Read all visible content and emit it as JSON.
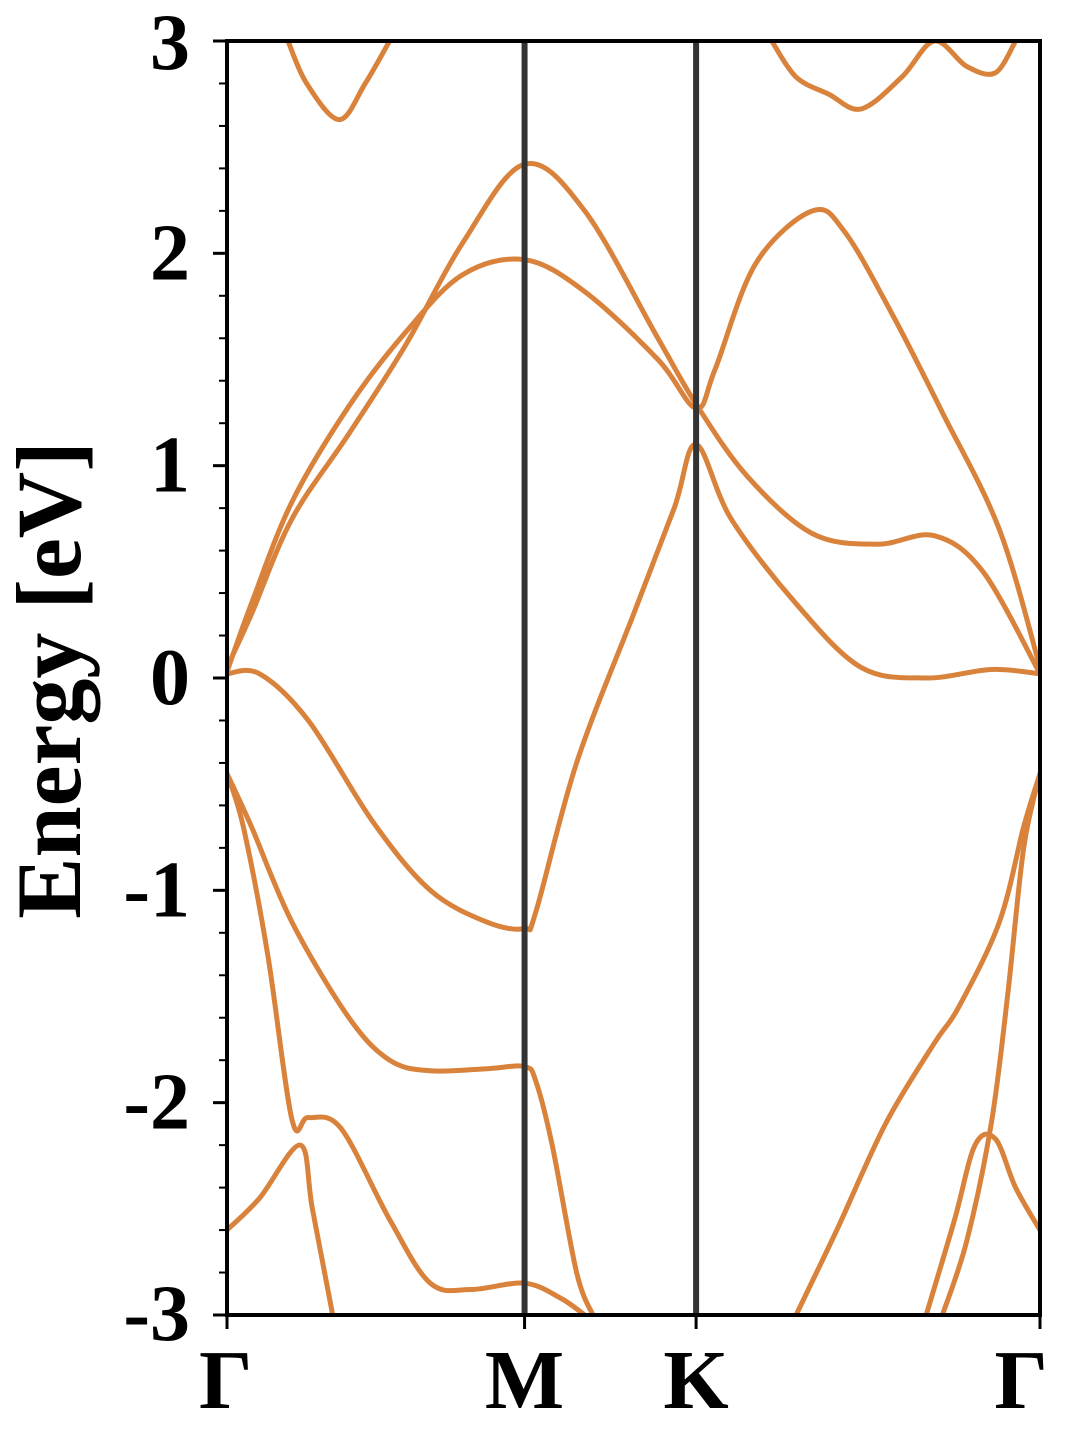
{
  "chart_data": {
    "type": "line",
    "title": "",
    "xlabel": "",
    "ylabel": "Energy [eV]",
    "ylim": [
      -3,
      3
    ],
    "yticks": [
      "-3",
      "-2",
      "-1",
      "0",
      "1",
      "2",
      "3"
    ],
    "xlim": [
      0,
      1
    ],
    "kpoints": [
      {
        "label": "Γ",
        "x": 0.0
      },
      {
        "label": "M",
        "x": 0.366
      },
      {
        "label": "K",
        "x": 0.577
      },
      {
        "label": "Γ",
        "x": 1.0
      }
    ],
    "band_color": "#d9823b",
    "kline_color": "#333333",
    "grid": false,
    "series": [
      {
        "values": [
          [
            0.075,
            3.0
          ],
          [
            0.098,
            2.8
          ],
          [
            0.138,
            2.63
          ],
          [
            0.17,
            2.8
          ],
          [
            0.2,
            3.0
          ]
        ]
      },
      {
        "values": [
          [
            0.0,
            0.03
          ],
          [
            0.03,
            0.35
          ],
          [
            0.08,
            0.83
          ],
          [
            0.15,
            1.28
          ],
          [
            0.22,
            1.63
          ],
          [
            0.29,
            1.9
          ],
          [
            0.366,
            1.97
          ],
          [
            0.44,
            1.82
          ],
          [
            0.53,
            1.5
          ],
          [
            0.577,
            1.27
          ],
          [
            0.6,
            1.45
          ],
          [
            0.65,
            1.95
          ],
          [
            0.72,
            2.2
          ],
          [
            0.76,
            2.1
          ],
          [
            0.82,
            1.7
          ],
          [
            0.88,
            1.25
          ],
          [
            0.95,
            0.7
          ],
          [
            1.0,
            0.05
          ]
        ]
      },
      {
        "values": [
          [
            0.0,
            0.05
          ],
          [
            0.03,
            0.3
          ],
          [
            0.08,
            0.75
          ],
          [
            0.15,
            1.15
          ],
          [
            0.22,
            1.57
          ],
          [
            0.29,
            2.05
          ],
          [
            0.366,
            2.42
          ],
          [
            0.44,
            2.2
          ],
          [
            0.53,
            1.6
          ],
          [
            0.577,
            1.29
          ],
          [
            0.64,
            0.95
          ],
          [
            0.72,
            0.68
          ],
          [
            0.8,
            0.63
          ],
          [
            0.87,
            0.67
          ],
          [
            0.93,
            0.5
          ],
          [
            1.0,
            0.02
          ]
        ]
      },
      {
        "values": [
          [
            0.0,
            0.02
          ],
          [
            0.04,
            0.02
          ],
          [
            0.1,
            -0.2
          ],
          [
            0.18,
            -0.68
          ],
          [
            0.25,
            -1.0
          ],
          [
            0.32,
            -1.15
          ],
          [
            0.366,
            -1.18
          ],
          [
            0.38,
            -1.1
          ],
          [
            0.43,
            -0.4
          ],
          [
            0.5,
            0.3
          ],
          [
            0.55,
            0.8
          ],
          [
            0.577,
            1.1
          ],
          [
            0.62,
            0.75
          ],
          [
            0.7,
            0.35
          ],
          [
            0.78,
            0.05
          ],
          [
            0.86,
            0.0
          ],
          [
            0.94,
            0.04
          ],
          [
            1.0,
            0.02
          ]
        ]
      },
      {
        "values": [
          [
            0.0,
            -0.45
          ],
          [
            0.03,
            -0.7
          ],
          [
            0.08,
            -1.15
          ],
          [
            0.15,
            -1.6
          ],
          [
            0.2,
            -1.8
          ],
          [
            0.25,
            -1.85
          ],
          [
            0.32,
            -1.84
          ],
          [
            0.366,
            -1.83
          ],
          [
            0.38,
            -1.9
          ],
          [
            0.4,
            -2.2
          ],
          [
            0.43,
            -2.8
          ],
          [
            0.45,
            -3.0
          ]
        ]
      },
      {
        "values": [
          [
            0.0,
            -0.45
          ],
          [
            0.02,
            -0.7
          ],
          [
            0.05,
            -1.3
          ],
          [
            0.08,
            -2.08
          ],
          [
            0.1,
            -2.07
          ],
          [
            0.14,
            -2.12
          ],
          [
            0.2,
            -2.55
          ],
          [
            0.25,
            -2.85
          ],
          [
            0.3,
            -2.88
          ],
          [
            0.366,
            -2.85
          ],
          [
            0.41,
            -2.92
          ],
          [
            0.44,
            -3.0
          ]
        ]
      },
      {
        "values": [
          [
            0.0,
            -2.6
          ],
          [
            0.04,
            -2.45
          ],
          [
            0.09,
            -2.2
          ],
          [
            0.105,
            -2.5
          ],
          [
            0.13,
            -3.0
          ]
        ]
      },
      {
        "values": [
          [
            0.67,
            3.0
          ],
          [
            0.7,
            2.83
          ],
          [
            0.74,
            2.75
          ],
          [
            0.78,
            2.68
          ],
          [
            0.83,
            2.83
          ],
          [
            0.87,
            3.0
          ],
          [
            0.91,
            2.88
          ],
          [
            0.945,
            2.85
          ],
          [
            0.97,
            3.0
          ]
        ]
      },
      {
        "values": [
          [
            1.0,
            -0.45
          ],
          [
            0.98,
            -0.7
          ],
          [
            0.95,
            -1.15
          ],
          [
            0.9,
            -1.55
          ],
          [
            0.87,
            -1.72
          ],
          [
            0.81,
            -2.1
          ],
          [
            0.75,
            -2.6
          ],
          [
            0.7,
            -3.0
          ]
        ]
      },
      {
        "values": [
          [
            1.0,
            -0.45
          ],
          [
            0.98,
            -0.8
          ],
          [
            0.96,
            -1.5
          ],
          [
            0.94,
            -2.1
          ],
          [
            0.91,
            -2.65
          ],
          [
            0.88,
            -3.0
          ]
        ]
      },
      {
        "values": [
          [
            1.0,
            -2.6
          ],
          [
            0.97,
            -2.4
          ],
          [
            0.945,
            -2.17
          ],
          [
            0.92,
            -2.2
          ],
          [
            0.895,
            -2.55
          ],
          [
            0.86,
            -3.0
          ]
        ]
      }
    ]
  }
}
